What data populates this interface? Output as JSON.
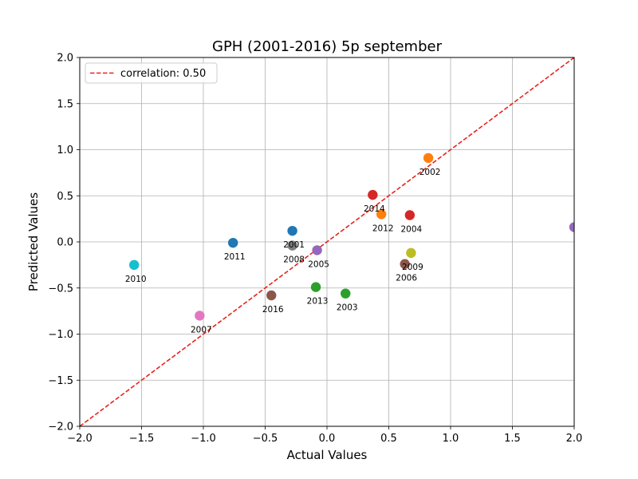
{
  "chart_data": {
    "type": "scatter",
    "title": "GPH (2001-2016) 5p september",
    "xlabel": "Actual Values",
    "ylabel": "Predicted Values",
    "xlim": [
      -2.0,
      2.0
    ],
    "ylim": [
      -2.0,
      2.0
    ],
    "xticks": [
      "−2.0",
      "−1.5",
      "−1.0",
      "−0.5",
      "0.0",
      "0.5",
      "1.0",
      "1.5",
      "2.0"
    ],
    "yticks": [
      "−2.0",
      "−1.5",
      "−1.0",
      "−0.5",
      "0.0",
      "0.5",
      "1.0",
      "1.5",
      "2.0"
    ],
    "grid": true,
    "legend": {
      "position": "top-left",
      "entries": [
        "correlation: 0.50"
      ]
    },
    "reference_line": {
      "style": "dashed",
      "color": "#e8231f",
      "from": [
        -2.0,
        -2.0
      ],
      "to": [
        2.0,
        2.0
      ]
    },
    "points": [
      {
        "label": "2001",
        "x": -0.28,
        "y": 0.12,
        "color": "#1f77b4"
      },
      {
        "label": "2002",
        "x": 0.82,
        "y": 0.91,
        "color": "#ff7f0e"
      },
      {
        "label": "2003",
        "x": 0.15,
        "y": -0.56,
        "color": "#2ca02c"
      },
      {
        "label": "2004",
        "x": 0.67,
        "y": 0.29,
        "color": "#d62728"
      },
      {
        "label": "2005",
        "x": -0.08,
        "y": -0.09,
        "color": "#9467bd"
      },
      {
        "label": "2006",
        "x": 0.63,
        "y": -0.24,
        "color": "#8c564b"
      },
      {
        "label": "2007",
        "x": -1.03,
        "y": -0.8,
        "color": "#e377c2"
      },
      {
        "label": "2008",
        "x": -0.28,
        "y": -0.04,
        "color": "#7f7f7f"
      },
      {
        "label": "2009",
        "x": 0.68,
        "y": -0.12,
        "color": "#bcbd22"
      },
      {
        "label": "2010",
        "x": -1.56,
        "y": -0.25,
        "color": "#17becf"
      },
      {
        "label": "2011",
        "x": -0.76,
        "y": -0.01,
        "color": "#1f77b4"
      },
      {
        "label": "2012",
        "x": 0.44,
        "y": 0.3,
        "color": "#ff7f0e"
      },
      {
        "label": "2013",
        "x": -0.09,
        "y": -0.49,
        "color": "#2ca02c"
      },
      {
        "label": "2014",
        "x": 0.37,
        "y": 0.51,
        "color": "#d62728"
      },
      {
        "label": "",
        "x": 2.0,
        "y": 0.16,
        "color": "#9467bd"
      },
      {
        "label": "2016",
        "x": -0.45,
        "y": -0.58,
        "color": "#8c564b"
      }
    ]
  }
}
